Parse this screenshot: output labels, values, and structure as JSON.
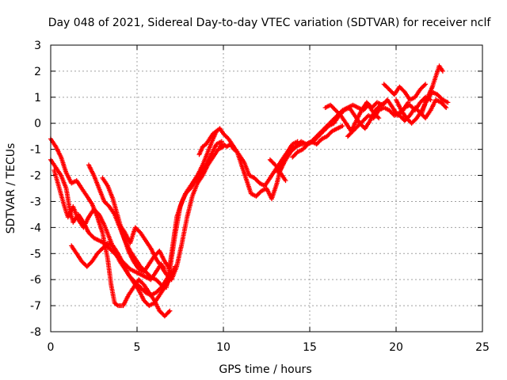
{
  "chart_data": {
    "type": "scatter",
    "title": "Day 048 of 2021, Sidereal Day-to-day VTEC variation (SDTVAR) for receiver nclf",
    "xlabel": "GPS time / hours",
    "ylabel": "SDTVAR / TECUs",
    "xlim": [
      0,
      25
    ],
    "ylim": [
      -8,
      3
    ],
    "xticks": [
      0,
      5,
      10,
      15,
      20,
      25
    ],
    "yticks": [
      -8,
      -7,
      -6,
      -5,
      -4,
      -3,
      -2,
      -1,
      0,
      1,
      2,
      3
    ],
    "grid": true,
    "marker": "plus",
    "series": [
      {
        "color": "#ff0000",
        "x": [
          0.0,
          0.3,
          0.6,
          0.9,
          1.1,
          1.3,
          1.6,
          1.9,
          2.2,
          2.5,
          2.8,
          3.1,
          3.4,
          3.7,
          4.0,
          4.3,
          4.6,
          4.9,
          5.2,
          5.5,
          5.8,
          6.1,
          6.4,
          6.6
        ],
        "y": [
          -1.4,
          -1.7,
          -2.0,
          -2.5,
          -3.3,
          -3.8,
          -3.5,
          -3.8,
          -4.2,
          -4.4,
          -4.5,
          -4.6,
          -4.8,
          -5.0,
          -5.2,
          -5.4,
          -5.6,
          -5.7,
          -5.8,
          -5.9,
          -6.0,
          -5.7,
          -5.4,
          -5.6
        ]
      },
      {
        "color": "#ff0000",
        "x": [
          0.0,
          0.3,
          0.6,
          0.9,
          1.2,
          1.5,
          1.8,
          2.1,
          2.4,
          2.7,
          3.0,
          3.3,
          3.5,
          3.7,
          3.9,
          4.2,
          4.5,
          4.8,
          5.1,
          5.4,
          5.7,
          6.0,
          6.3,
          6.6,
          6.9
        ],
        "y": [
          -0.6,
          -0.9,
          -1.3,
          -1.9,
          -2.3,
          -2.2,
          -2.5,
          -2.8,
          -3.1,
          -3.6,
          -4.2,
          -5.2,
          -6.2,
          -6.9,
          -7.0,
          -7.0,
          -6.6,
          -6.3,
          -6.0,
          -6.2,
          -6.5,
          -6.8,
          -7.2,
          -7.4,
          -7.2
        ]
      },
      {
        "color": "#ff0000",
        "x": [
          0.2,
          0.5,
          0.8,
          1.0,
          1.3,
          1.6,
          1.9,
          2.2,
          2.5,
          2.8,
          3.1,
          3.4,
          3.7,
          4.0,
          4.3,
          4.6,
          4.9,
          5.2,
          5.5,
          5.8,
          6.1,
          6.4,
          6.7,
          7.0
        ],
        "y": [
          -1.8,
          -2.5,
          -3.2,
          -3.6,
          -3.2,
          -3.7,
          -4.0,
          -3.6,
          -3.3,
          -3.5,
          -3.9,
          -4.4,
          -4.9,
          -5.3,
          -5.6,
          -5.9,
          -6.1,
          -6.3,
          -6.5,
          -6.6,
          -6.5,
          -6.3,
          -6.0,
          -5.7
        ]
      },
      {
        "color": "#ff0000",
        "x": [
          1.2,
          1.5,
          1.8,
          2.1,
          2.4,
          2.7,
          3.0,
          3.3,
          3.6,
          3.9,
          4.2,
          4.5,
          4.8,
          5.1,
          5.4,
          5.7,
          6.0,
          6.3,
          6.6,
          6.9,
          7.2
        ],
        "y": [
          -4.7,
          -5.0,
          -5.3,
          -5.5,
          -5.3,
          -5.0,
          -4.8,
          -4.6,
          -4.7,
          -5.0,
          -5.4,
          -5.8,
          -6.1,
          -6.4,
          -6.8,
          -7.0,
          -6.9,
          -6.6,
          -6.3,
          -6.0,
          -5.5
        ]
      },
      {
        "color": "#ff0000",
        "x": [
          2.2,
          2.5,
          2.8,
          3.1,
          3.4,
          3.7,
          4.0,
          4.3,
          4.6,
          4.9,
          5.2,
          5.5,
          5.8,
          6.1,
          6.4,
          6.7,
          7.0,
          7.3,
          7.6,
          7.9,
          8.2,
          8.5,
          8.8,
          9.1,
          9.4,
          9.6
        ],
        "y": [
          -1.6,
          -2.0,
          -2.5,
          -3.0,
          -3.2,
          -3.5,
          -4.0,
          -4.5,
          -4.9,
          -5.2,
          -5.5,
          -5.7,
          -5.9,
          -6.0,
          -6.2,
          -6.3,
          -5.0,
          -3.6,
          -3.0,
          -2.6,
          -2.3,
          -2.0,
          -1.6,
          -1.1,
          -0.6,
          -0.3
        ]
      },
      {
        "color": "#ff0000",
        "x": [
          3.0,
          3.3,
          3.6,
          3.9,
          4.2,
          4.5,
          4.8,
          5.1,
          5.4,
          5.7,
          6.0,
          6.3,
          6.6,
          6.9,
          7.2,
          7.5,
          7.8,
          8.1,
          8.4,
          8.7,
          9.0,
          9.3,
          9.6,
          9.9
        ],
        "y": [
          -2.1,
          -2.4,
          -2.9,
          -3.6,
          -4.3,
          -4.9,
          -5.3,
          -5.6,
          -5.7,
          -5.4,
          -5.1,
          -4.9,
          -5.3,
          -5.6,
          -4.3,
          -3.2,
          -2.7,
          -2.5,
          -2.2,
          -1.9,
          -1.6,
          -1.2,
          -0.8,
          -0.7
        ]
      },
      {
        "color": "#ff0000",
        "x": [
          4.0,
          4.3,
          4.6,
          4.9,
          5.2,
          5.5,
          5.8,
          6.1,
          6.4,
          6.7,
          7.0,
          7.3,
          7.6,
          7.9,
          8.2,
          8.5,
          8.8,
          9.1,
          9.4,
          9.7,
          10.0
        ],
        "y": [
          -3.9,
          -4.2,
          -4.6,
          -4.0,
          -4.2,
          -4.5,
          -4.8,
          -5.2,
          -5.5,
          -5.8,
          -6.0,
          -5.5,
          -4.6,
          -3.6,
          -2.8,
          -2.3,
          -2.0,
          -1.6,
          -1.3,
          -1.0,
          -0.9
        ]
      },
      {
        "color": "#ff0000",
        "x": [
          8.6,
          8.8,
          9.0,
          9.2,
          9.4,
          9.6,
          9.8,
          10.0,
          10.3,
          10.6,
          10.9,
          11.2,
          11.5,
          11.8,
          12.1,
          12.4,
          12.7,
          13.0,
          13.3,
          13.6
        ],
        "y": [
          -1.2,
          -0.9,
          -0.8,
          -0.6,
          -0.4,
          -0.3,
          -0.2,
          -0.4,
          -0.6,
          -0.9,
          -1.2,
          -1.5,
          -2.0,
          -2.1,
          -2.3,
          -2.4,
          -2.1,
          -1.8,
          -1.9,
          -2.2
        ]
      },
      {
        "color": "#ff0000",
        "x": [
          9.8,
          10.0,
          10.2,
          10.4,
          10.6,
          10.8,
          11.0,
          11.3,
          11.6,
          11.9,
          12.2,
          12.5,
          12.8,
          13.1,
          13.4,
          13.7,
          14.0,
          14.3
        ],
        "y": [
          -0.9,
          -0.8,
          -0.9,
          -0.8,
          -1.0,
          -1.1,
          -1.5,
          -2.1,
          -2.7,
          -2.8,
          -2.6,
          -2.5,
          -2.9,
          -2.3,
          -1.5,
          -1.1,
          -0.8,
          -0.7
        ]
      },
      {
        "color": "#ff0000",
        "x": [
          12.7,
          13.0,
          13.3,
          13.6,
          13.9,
          14.2,
          14.5,
          14.8,
          15.1,
          15.4,
          15.7,
          16.0,
          16.3,
          16.6,
          16.9
        ],
        "y": [
          -1.4,
          -1.6,
          -1.8,
          -1.4,
          -1.1,
          -0.9,
          -0.7,
          -0.8,
          -0.7,
          -0.8,
          -0.6,
          -0.5,
          -0.3,
          -0.2,
          -0.1
        ]
      },
      {
        "color": "#ff0000",
        "x": [
          13.0,
          13.3,
          13.6,
          13.9,
          14.2,
          14.5,
          14.8,
          15.1,
          15.4,
          15.7,
          16.0,
          16.3,
          16.6,
          16.9,
          17.2,
          17.5,
          17.8,
          18.1,
          18.4,
          18.7,
          19.0
        ],
        "y": [
          -1.8,
          -1.5,
          -1.2,
          -1.0,
          -0.9,
          -0.8,
          -0.8,
          -0.7,
          -0.5,
          -0.3,
          -0.1,
          0.1,
          0.3,
          0.5,
          0.6,
          0.7,
          0.6,
          0.5,
          0.7,
          0.4,
          0.2
        ]
      },
      {
        "color": "#ff0000",
        "x": [
          14.0,
          14.3,
          14.6,
          14.9,
          15.2,
          15.5,
          15.8,
          16.1,
          16.4,
          16.7,
          17.0,
          17.3,
          17.6,
          17.9,
          18.2,
          18.5,
          18.8,
          19.1,
          19.4
        ],
        "y": [
          -1.3,
          -1.1,
          -1.0,
          -0.8,
          -0.7,
          -0.5,
          -0.3,
          -0.1,
          0.0,
          0.3,
          0.5,
          0.6,
          0.3,
          0.0,
          -0.2,
          0.1,
          0.5,
          0.7,
          0.8
        ]
      },
      {
        "color": "#ff0000",
        "x": [
          15.9,
          16.2,
          16.5,
          16.8,
          17.1,
          17.4,
          17.7,
          18.0,
          18.3,
          18.6,
          18.9,
          19.2,
          19.5,
          19.8,
          20.1,
          20.4,
          20.7
        ],
        "y": [
          0.6,
          0.7,
          0.5,
          0.3,
          0.0,
          -0.3,
          0.1,
          0.5,
          0.8,
          0.6,
          0.8,
          0.7,
          0.9,
          0.6,
          0.3,
          0.5,
          0.8
        ]
      },
      {
        "color": "#ff0000",
        "x": [
          17.2,
          17.5,
          17.8,
          18.1,
          18.4,
          18.7,
          19.0,
          19.3,
          19.6,
          19.9,
          20.2,
          20.5,
          20.8,
          21.1,
          21.4,
          21.7,
          22.0
        ],
        "y": [
          -0.5,
          -0.3,
          -0.1,
          0.1,
          0.3,
          0.2,
          0.5,
          0.6,
          0.5,
          0.3,
          0.4,
          0.6,
          0.7,
          0.5,
          0.8,
          1.0,
          0.9
        ]
      },
      {
        "color": "#ff0000",
        "x": [
          19.3,
          19.6,
          19.9,
          20.2,
          20.5,
          20.8,
          21.1,
          21.4,
          21.7
        ],
        "y": [
          1.5,
          1.3,
          1.1,
          1.4,
          1.2,
          0.9,
          1.0,
          1.3,
          1.5
        ]
      },
      {
        "color": "#ff0000",
        "x": [
          20.0,
          20.3,
          20.6,
          20.9,
          21.2,
          21.5,
          21.8,
          22.1,
          22.4,
          22.7,
          23.0
        ],
        "y": [
          0.9,
          0.5,
          0.2,
          0.0,
          0.2,
          0.5,
          0.9,
          1.2,
          1.1,
          0.9,
          0.8
        ]
      },
      {
        "color": "#ff0000",
        "x": [
          20.2,
          20.5,
          20.8,
          21.1,
          21.4,
          21.7,
          22.0,
          22.3,
          22.6,
          22.9
        ],
        "y": [
          0.3,
          0.1,
          0.3,
          0.6,
          0.4,
          0.2,
          0.5,
          0.9,
          0.8,
          0.6
        ]
      },
      {
        "color": "#ff0000",
        "x": [
          21.5,
          21.7,
          21.9,
          22.1,
          22.3,
          22.5,
          22.7
        ],
        "y": [
          0.4,
          0.8,
          1.1,
          1.4,
          1.8,
          2.2,
          2.0
        ]
      }
    ]
  }
}
